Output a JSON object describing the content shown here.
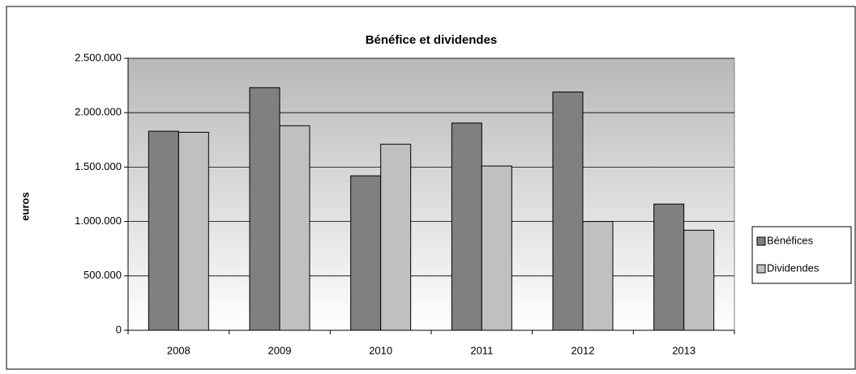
{
  "chart_data": {
    "type": "bar",
    "title": "Bénéfice et dividendes",
    "y_label": "euros",
    "categories": [
      "2008",
      "2009",
      "2010",
      "2011",
      "2012",
      "2013"
    ],
    "series": [
      {
        "name": "Bénéfices",
        "color": "#808080",
        "values": [
          1830000,
          2230000,
          1420000,
          1905000,
          2190000,
          1160000
        ]
      },
      {
        "name": "Dividendes",
        "color": "#c0c0c0",
        "values": [
          1820000,
          1880000,
          1710000,
          1510000,
          1000000,
          920000
        ]
      }
    ],
    "ylim": [
      0,
      2500000
    ],
    "yticks": [
      0,
      {
        "value": 500000,
        "label": "500.000"
      },
      {
        "value": 1000000,
        "label": "1.000.000"
      },
      {
        "value": 1500000,
        "label": "1.500.000"
      },
      {
        "value": 2000000,
        "label": "2.000.000"
      },
      {
        "value": 2500000,
        "label": "2.500.000"
      }
    ],
    "grid": true,
    "legend": "right"
  }
}
